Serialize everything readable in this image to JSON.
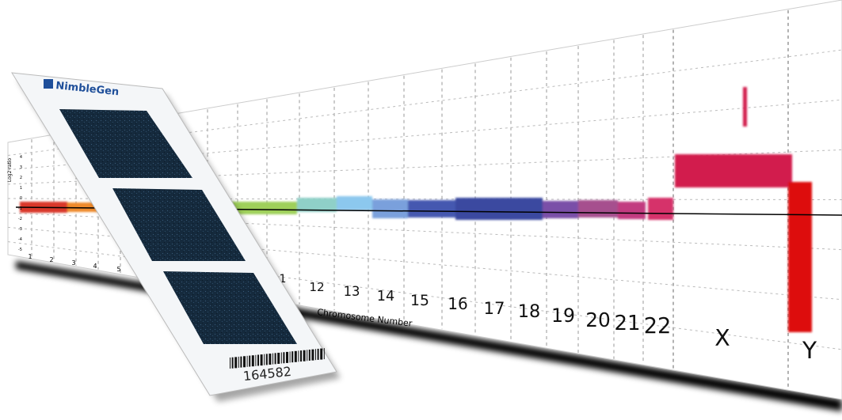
{
  "logo": "NimbleGen",
  "y_axis": {
    "label": "Log2 ratio",
    "ticks": [
      "4",
      "3",
      "2",
      "1",
      "0",
      "-1",
      "-2",
      "-3",
      "-4",
      "-5"
    ]
  },
  "x_axis": {
    "label": "Chromosome Number",
    "left_labels": [
      "1",
      "2",
      "3",
      "4",
      "5"
    ],
    "labels": [
      "1",
      "12",
      "13",
      "14",
      "15",
      "16",
      "17",
      "18",
      "19",
      "20",
      "21",
      "22",
      "X",
      "Y"
    ]
  },
  "barcode": "164582"
}
